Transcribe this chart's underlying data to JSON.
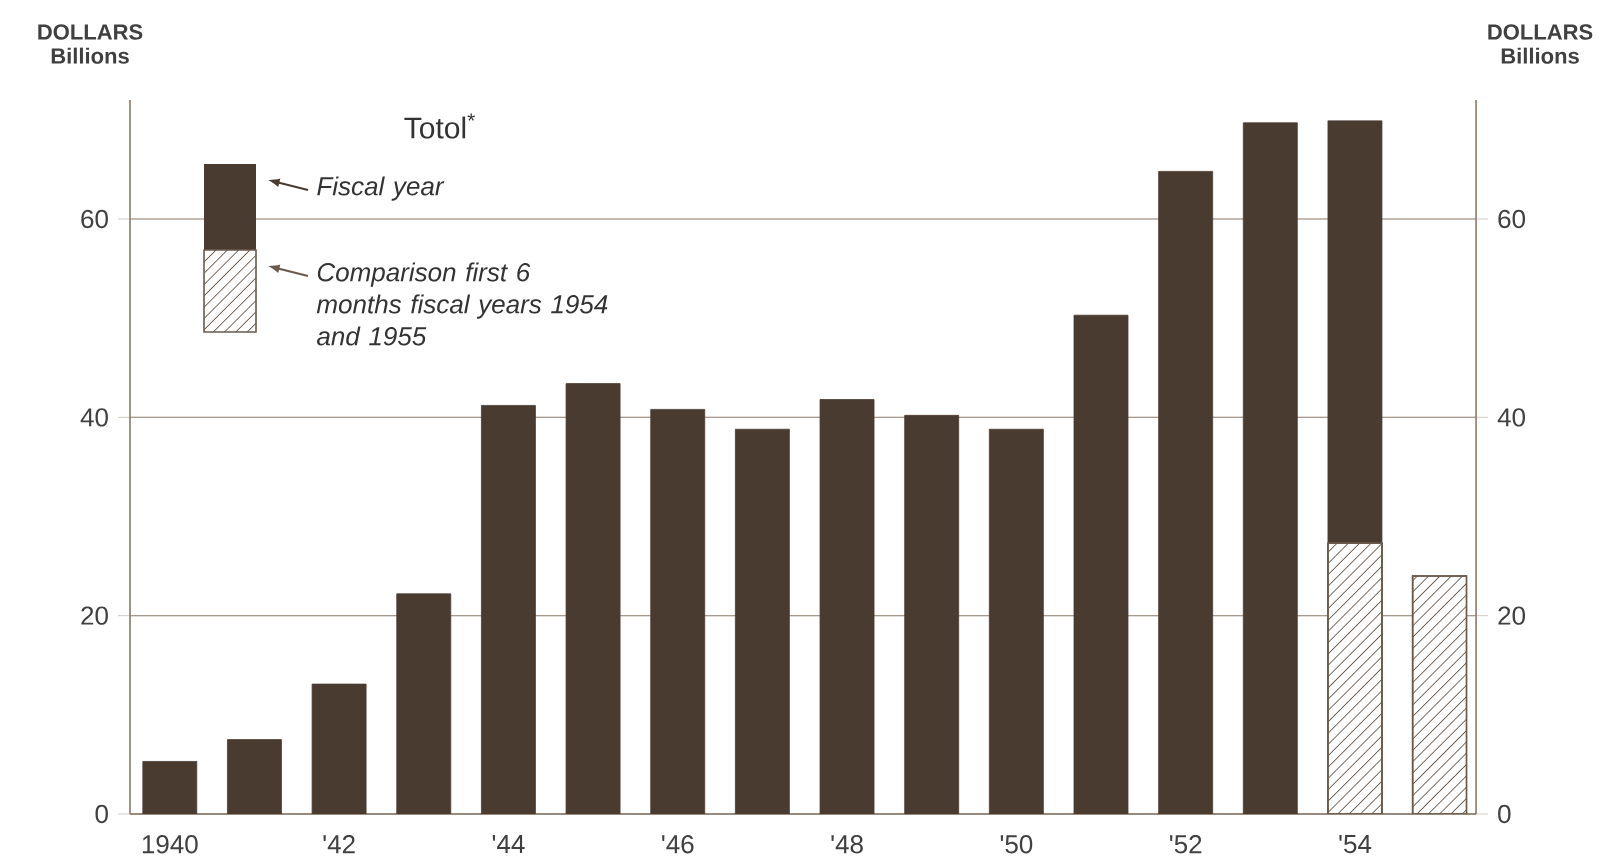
{
  "chart_data": {
    "type": "bar",
    "legend_title": "Totol$^{*}$",
    "ylabel": "DOLLARS Billions",
    "y2label": "DOLLARS Billions",
    "categories": [
      "1940",
      null,
      "'42",
      null,
      "'44",
      null,
      "'46",
      null,
      "'48",
      null,
      "'50",
      null,
      "'52",
      null,
      "'54",
      null
    ],
    "series": [
      {
        "name": "Fiscal year",
        "color": "#4a3b31",
        "values": [
          5.3,
          7.5,
          13.1,
          22.2,
          41.2,
          43.4,
          40.8,
          38.8,
          41.8,
          40.2,
          38.8,
          50.3,
          64.8,
          69.7,
          69.9,
          null
        ]
      },
      {
        "name": "Comparison first 6 months fiscal years 1954 and 1955",
        "color": "#6b5a4c",
        "values": [
          null,
          null,
          null,
          null,
          null,
          null,
          null,
          null,
          null,
          null,
          null,
          null,
          null,
          null,
          27.3,
          24.0
        ]
      }
    ],
    "ylim": [
      0,
      72
    ],
    "yticks": [
      0,
      20,
      40,
      60
    ],
    "y2lim": [
      0,
      72
    ],
    "y2ticks": [
      0,
      20,
      40,
      60
    ],
    "grid": "y",
    "legend": "top left"
  }
}
